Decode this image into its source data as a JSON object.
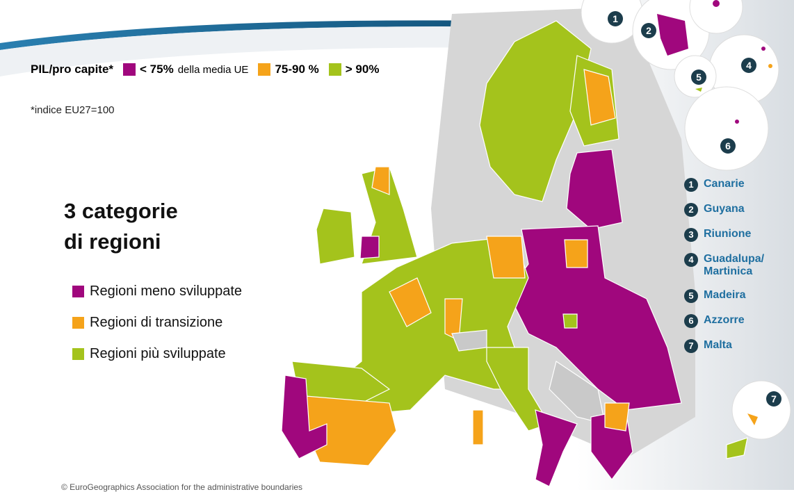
{
  "legend": {
    "label": "PIL/pro capite*",
    "items": [
      {
        "label": "< 75%",
        "note": "della media UE",
        "color": "#a0077d"
      },
      {
        "label": "75-90 %",
        "color": "#f5a31a"
      },
      {
        "label": "> 90%",
        "color": "#a4c31c"
      }
    ]
  },
  "note": "*indice EU27=100",
  "heading": [
    "3 categorie",
    "di regioni"
  ],
  "categories": [
    "Regioni meno sviluppate",
    "Regioni di transizione",
    "Regioni più sviluppate"
  ],
  "outermost_regions": [
    {
      "number": 1,
      "name": [
        "Canarie"
      ]
    },
    {
      "number": 2,
      "name": [
        "Guyana"
      ]
    },
    {
      "number": 3,
      "name": [
        "Riunione"
      ]
    },
    {
      "number": 4,
      "name": [
        "Guadalupa/",
        "Martinica"
      ]
    },
    {
      "number": 5,
      "name": [
        "Madeira"
      ]
    },
    {
      "number": 6,
      "name": [
        "Azzorre"
      ]
    },
    {
      "number": 7,
      "name": [
        "Malta"
      ]
    }
  ],
  "footer": "© EuroGeographics Association for the administrative boundaries"
}
